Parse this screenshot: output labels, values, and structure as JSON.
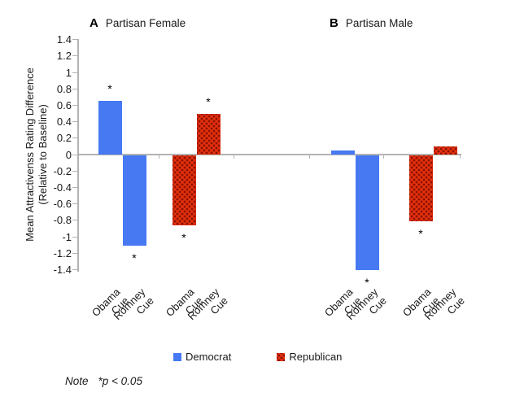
{
  "figure": {
    "panels": [
      {
        "label": "A",
        "title": "Partisan Female"
      },
      {
        "label": "B",
        "title": "Partisan Male"
      }
    ],
    "y_axis": {
      "label_line1": "Mean Attractivenss Rating Difference",
      "label_line2": "(Relative to Baseline)",
      "ticks": [
        "1.4",
        "1.2",
        "1",
        "0.8",
        "0.6",
        "0.4",
        "0.2",
        "0",
        "-0.2",
        "-0.4",
        "-0.6",
        "-0.8",
        "-1",
        "-1.2",
        "-1.4"
      ]
    },
    "legend": [
      {
        "label": "Democrat",
        "color": "#4679f2"
      },
      {
        "label": "Republican",
        "color": "#e8320e"
      }
    ],
    "note_prefix": "Note",
    "note_text": "*p < 0.05",
    "sig_marker": "*"
  },
  "chart_data": {
    "type": "bar",
    "title": "",
    "ylabel": "Mean Attractivenss Rating Difference (Relative to Baseline)",
    "ylim": [
      -1.4,
      1.4
    ],
    "ytick_step": 0.2,
    "grid": false,
    "legend_position": "bottom",
    "categories": [
      "Obama Cue",
      "Romney Cue"
    ],
    "series_colors": {
      "Democrat": "#4679f2",
      "Republican": "#e8320e"
    },
    "panels": [
      {
        "label": "A",
        "title": "Partisan Female",
        "groups": [
          {
            "series": "Democrat",
            "bars": [
              {
                "category": "Obama Cue",
                "value": 0.65,
                "significant": true
              },
              {
                "category": "Romney Cue",
                "value": -1.1,
                "significant": true
              }
            ]
          },
          {
            "series": "Republican",
            "bars": [
              {
                "category": "Obama Cue",
                "value": -0.85,
                "significant": true
              },
              {
                "category": "Romney Cue",
                "value": 0.5,
                "significant": true
              }
            ]
          }
        ]
      },
      {
        "label": "B",
        "title": "Partisan Male",
        "groups": [
          {
            "series": "Democrat",
            "bars": [
              {
                "category": "Obama Cue",
                "value": 0.05,
                "significant": false
              },
              {
                "category": "Romney Cue",
                "value": -1.4,
                "significant": true
              }
            ]
          },
          {
            "series": "Republican",
            "bars": [
              {
                "category": "Obama Cue",
                "value": -0.8,
                "significant": true
              },
              {
                "category": "Romney Cue",
                "value": 0.1,
                "significant": false
              }
            ]
          }
        ]
      }
    ]
  }
}
